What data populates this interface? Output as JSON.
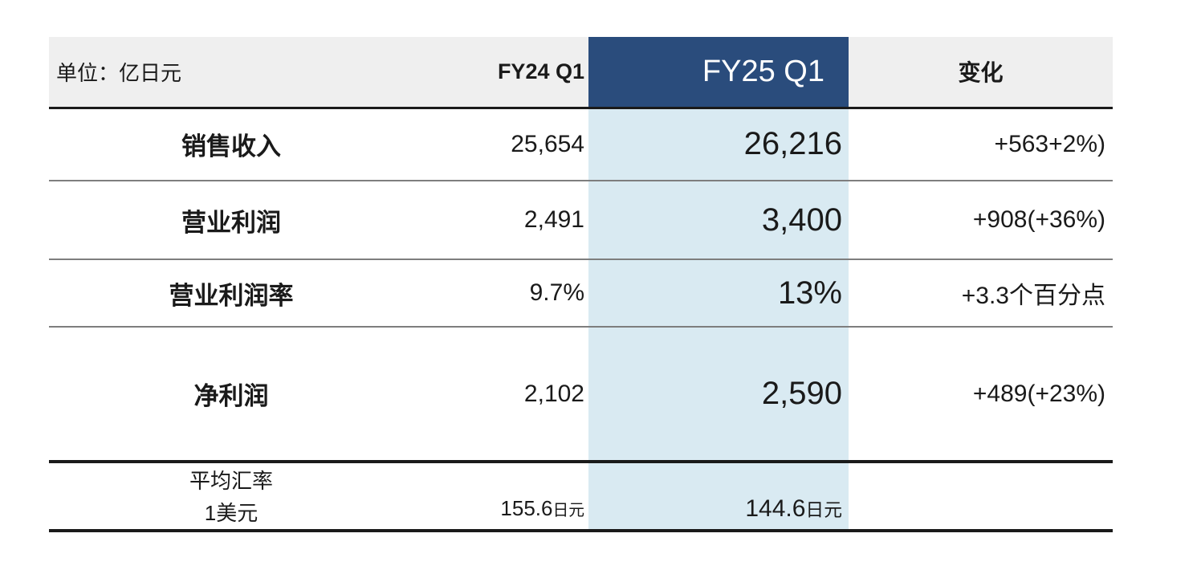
{
  "chart_data": {
    "type": "table",
    "unit_label": "单位：亿日元",
    "column_headers": {
      "fy24": "FY24 Q1",
      "fy25": "FY25 Q1",
      "change": "变化"
    },
    "highlighted_column": "FY25 Q1",
    "rows": [
      {
        "label": "销售收入",
        "fy24": "25,654",
        "fy25": "26,216",
        "change": "+563+2%)"
      },
      {
        "label": "营业利润",
        "fy24": "2,491",
        "fy25": "3,400",
        "change": "+908(+36%)"
      },
      {
        "label": "营业利润率",
        "fy24": "9.7%",
        "fy25": "13%",
        "change": "+3.3个百分点"
      },
      {
        "label": "净利润",
        "fy24": "2,102",
        "fy25": "2,590",
        "change": "+489(+23%)"
      }
    ],
    "exchange_rate_row": {
      "label_line1": "平均汇率",
      "label_line2": "1美元",
      "fy24_value": "155.6",
      "fy24_unit": "日元",
      "fy25_value": "144.6",
      "fy25_unit": "日元",
      "change": ""
    },
    "colors": {
      "navy": "#2A4C7C",
      "band": "#D9EAF2",
      "headerbg": "#EFEFEF",
      "ink": "#1A1A1A",
      "thinline": "#7E7E7E"
    }
  }
}
